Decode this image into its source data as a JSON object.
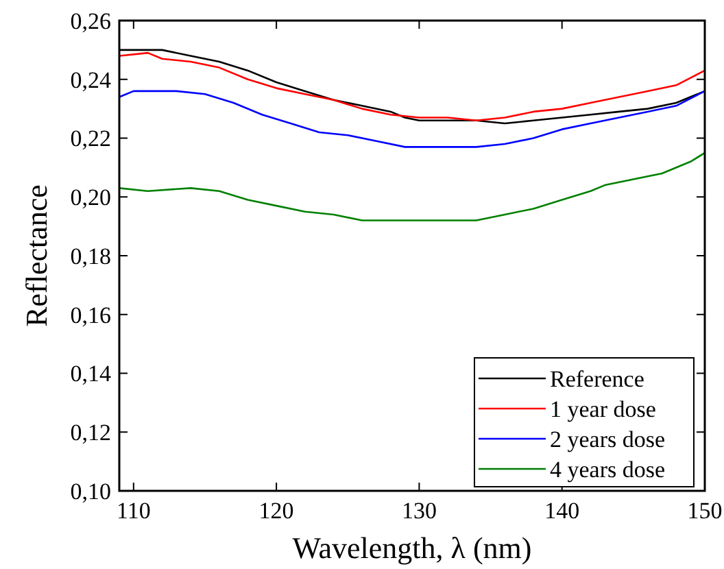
{
  "chart_data": {
    "type": "line",
    "xlabel": "Wavelength, λ (nm)",
    "ylabel": "Reflectance",
    "xlim": [
      109,
      150
    ],
    "ylim": [
      0.1,
      0.26
    ],
    "xticks": [
      110,
      120,
      130,
      140,
      150
    ],
    "yticks": [
      {
        "value": 0.1,
        "label": "0,10"
      },
      {
        "value": 0.12,
        "label": "0,12"
      },
      {
        "value": 0.14,
        "label": "0,14"
      },
      {
        "value": 0.16,
        "label": "0,16"
      },
      {
        "value": 0.18,
        "label": "0,18"
      },
      {
        "value": 0.2,
        "label": "0,20"
      },
      {
        "value": 0.22,
        "label": "0,22"
      },
      {
        "value": 0.24,
        "label": "0,24"
      },
      {
        "value": 0.26,
        "label": "0,26"
      }
    ],
    "legend": "bottom right",
    "grid": false,
    "marker": "none",
    "line_style": "solid",
    "series": [
      {
        "name": "Reference",
        "color": "#000000",
        "x": [
          109,
          112,
          114,
          116,
          118,
          120,
          122,
          124,
          126,
          128,
          129,
          130,
          132,
          134,
          136,
          138,
          140,
          142,
          144,
          146,
          148,
          150
        ],
        "values": [
          0.25,
          0.25,
          0.248,
          0.246,
          0.243,
          0.239,
          0.236,
          0.233,
          0.231,
          0.229,
          0.227,
          0.226,
          0.226,
          0.226,
          0.225,
          0.226,
          0.227,
          0.228,
          0.229,
          0.23,
          0.232,
          0.236
        ]
      },
      {
        "name": "1 year dose",
        "color": "#ff0000",
        "x": [
          109,
          111,
          112,
          114,
          116,
          118,
          120,
          122,
          124,
          126,
          128,
          130,
          132,
          134,
          136,
          138,
          140,
          142,
          144,
          146,
          148,
          150
        ],
        "values": [
          0.248,
          0.249,
          0.247,
          0.246,
          0.244,
          0.24,
          0.237,
          0.235,
          0.233,
          0.23,
          0.228,
          0.227,
          0.227,
          0.226,
          0.227,
          0.229,
          0.23,
          0.232,
          0.234,
          0.236,
          0.238,
          0.243
        ]
      },
      {
        "name": "2 years dose",
        "color": "#0000ff",
        "x": [
          109,
          110,
          113,
          115,
          117,
          119,
          121,
          123,
          125,
          127,
          129,
          131,
          134,
          136,
          138,
          140,
          142,
          144,
          146,
          148,
          150
        ],
        "values": [
          0.234,
          0.236,
          0.236,
          0.235,
          0.232,
          0.228,
          0.225,
          0.222,
          0.221,
          0.219,
          0.217,
          0.217,
          0.217,
          0.218,
          0.22,
          0.223,
          0.225,
          0.227,
          0.229,
          0.231,
          0.236
        ]
      },
      {
        "name": "4 years dose",
        "color": "#008000",
        "x": [
          109,
          111,
          114,
          116,
          118,
          120,
          122,
          124,
          126,
          128,
          130,
          134,
          136,
          138,
          140,
          142,
          143,
          145,
          147,
          149,
          150
        ],
        "values": [
          0.203,
          0.202,
          0.203,
          0.202,
          0.199,
          0.197,
          0.195,
          0.194,
          0.192,
          0.192,
          0.192,
          0.192,
          0.194,
          0.196,
          0.199,
          0.202,
          0.204,
          0.206,
          0.208,
          0.212,
          0.215
        ]
      }
    ]
  }
}
